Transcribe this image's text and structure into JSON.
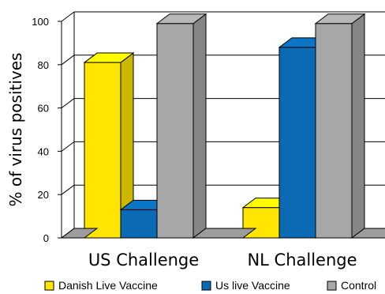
{
  "chart_data": {
    "type": "bar",
    "title": "",
    "xlabel": "",
    "ylabel": "% of virus positives",
    "ylim": [
      0,
      100
    ],
    "yticks": [
      "0",
      "20",
      "40",
      "60",
      "80",
      "100"
    ],
    "categories": [
      "US Challenge",
      "NL Challenge"
    ],
    "series": [
      {
        "name": "Danish Live Vaccine",
        "values": [
          81,
          14
        ],
        "color": "#FFE500"
      },
      {
        "name": "Us live Vaccine",
        "values": [
          13,
          88
        ],
        "color": "#0A6AB4"
      },
      {
        "name": "Control",
        "values": [
          99,
          99
        ],
        "color": "#A7A7A7"
      }
    ],
    "legend_position": "bottom",
    "grid": true
  }
}
